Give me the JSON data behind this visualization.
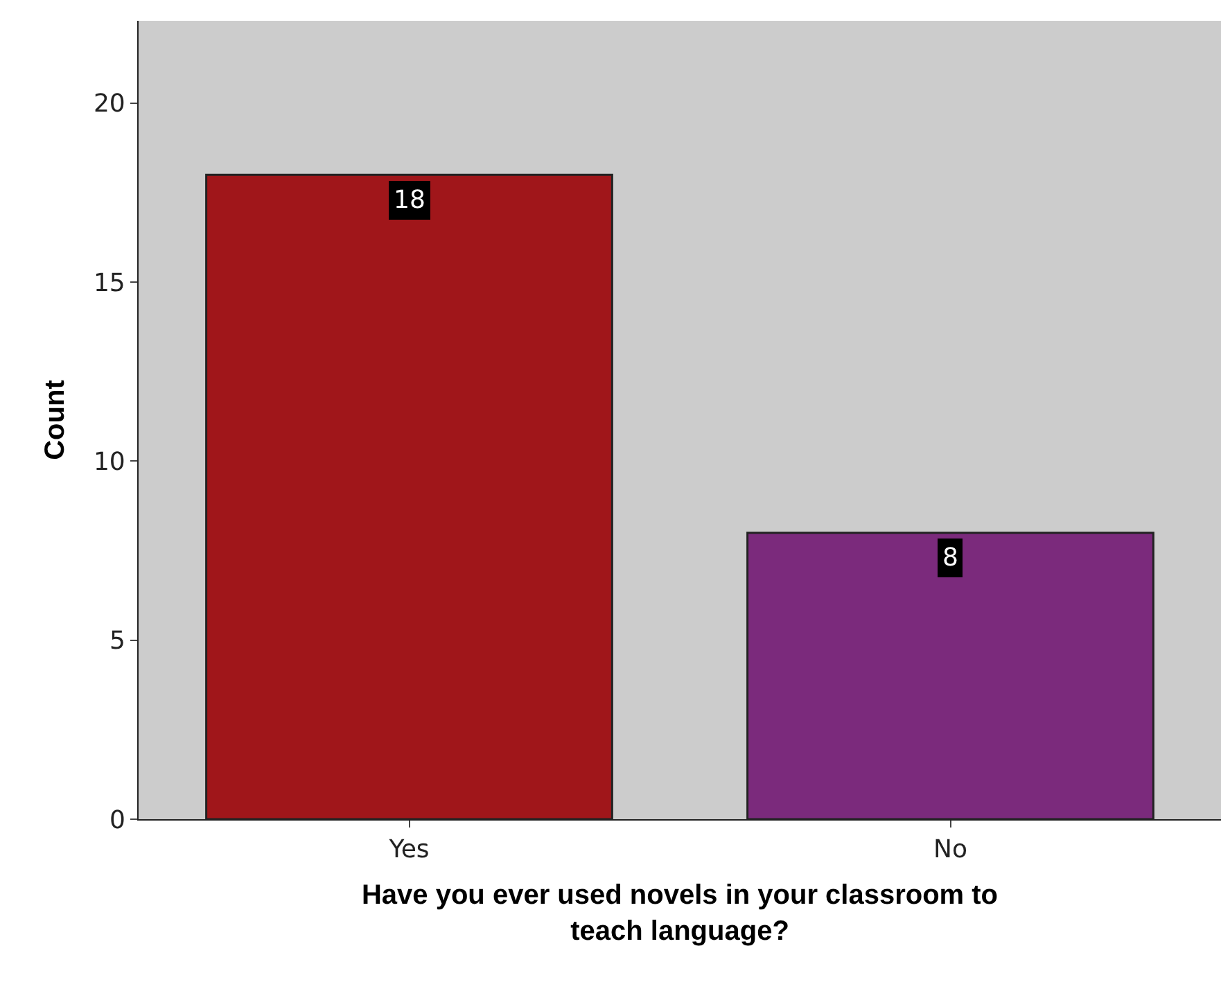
{
  "chart_data": {
    "type": "bar",
    "xlabel": "Have you ever used novels in your classroom to teach language?",
    "ylabel": "Count",
    "categories": [
      "Yes",
      "No"
    ],
    "values": [
      18,
      8
    ],
    "colors": [
      "#a0161a",
      "#7b2a7c"
    ],
    "ylim": [
      0,
      22.3
    ],
    "yticks": [
      0,
      5,
      10,
      15,
      20
    ],
    "grid": false,
    "data_labels": true,
    "legend": false
  }
}
